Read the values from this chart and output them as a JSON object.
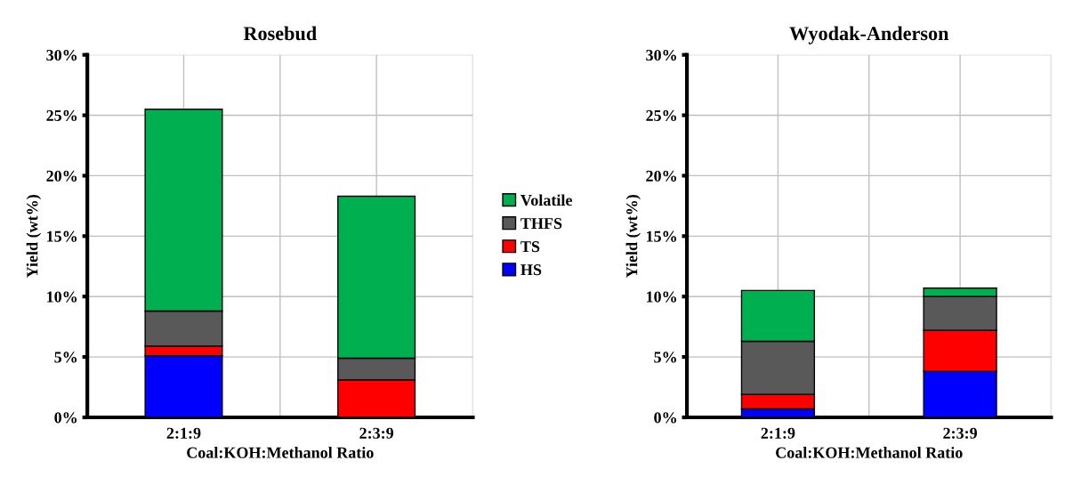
{
  "chart_data": [
    {
      "type": "bar",
      "title": "Rosebud",
      "xlabel": "Coal:KOH:Methanol Ratio",
      "ylabel": "Yield (wt%)",
      "categories": [
        "2:1:9",
        "2:3:9"
      ],
      "stacked": true,
      "ylim": [
        0,
        30
      ],
      "yticks": [
        {
          "value": 0,
          "label": "0%"
        },
        {
          "value": 5,
          "label": "5%"
        },
        {
          "value": 10,
          "label": "10%"
        },
        {
          "value": 15,
          "label": "15%"
        },
        {
          "value": 20,
          "label": "20%"
        },
        {
          "value": 25,
          "label": "25%"
        },
        {
          "value": 30,
          "label": "30%"
        }
      ],
      "grid": true,
      "legend": "right",
      "series": [
        {
          "name": "HS",
          "color": "#0000ff",
          "values": [
            5.1,
            0
          ]
        },
        {
          "name": "TS",
          "color": "#ff0000",
          "values": [
            0.8,
            3.1
          ]
        },
        {
          "name": "THFS",
          "color": "#595959",
          "values": [
            2.9,
            1.8
          ]
        },
        {
          "name": "Volatile",
          "color": "#00b050",
          "values": [
            16.7,
            13.4
          ]
        }
      ]
    },
    {
      "type": "bar",
      "title": "Wyodak-Anderson",
      "xlabel": "Coal:KOH:Methanol Ratio",
      "ylabel": "Yield (wt%)",
      "categories": [
        "2:1:9",
        "2:3:9"
      ],
      "stacked": true,
      "ylim": [
        0,
        30
      ],
      "yticks": [
        {
          "value": 0,
          "label": "0%"
        },
        {
          "value": 5,
          "label": "5%"
        },
        {
          "value": 10,
          "label": "10%"
        },
        {
          "value": 15,
          "label": "15%"
        },
        {
          "value": 20,
          "label": "20%"
        },
        {
          "value": 25,
          "label": "25%"
        },
        {
          "value": 30,
          "label": "30%"
        }
      ],
      "grid": true,
      "series": [
        {
          "color": "#0000ff",
          "values": [
            0.7,
            3.8
          ]
        },
        {
          "color": "#ff0000",
          "values": [
            1.2,
            3.4
          ]
        },
        {
          "color": "#595959",
          "values": [
            4.4,
            2.8
          ]
        },
        {
          "color": "#00b050",
          "values": [
            4.2,
            0.7
          ]
        }
      ]
    }
  ]
}
